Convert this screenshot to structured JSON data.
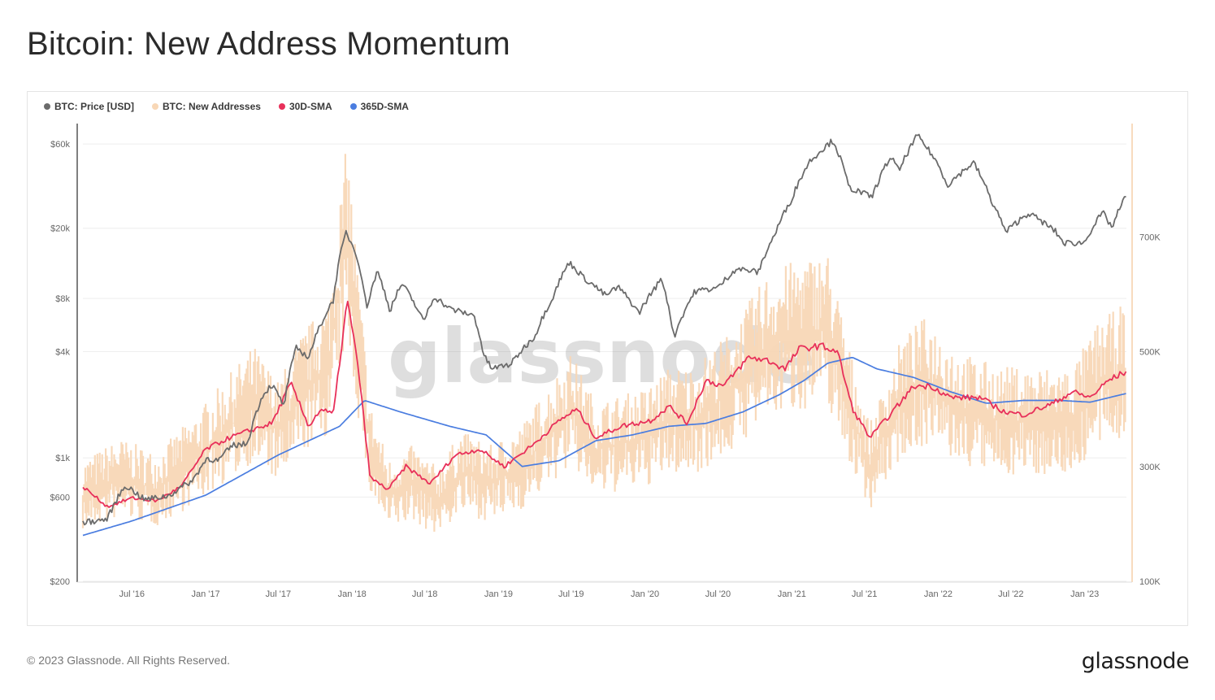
{
  "title": "Bitcoin: New Address Momentum",
  "footer": "© 2023 Glassnode. All Rights Reserved.",
  "brand": "glassnode",
  "watermark": "glassnode",
  "chart_data": {
    "type": "line",
    "title": "Bitcoin: New Address Momentum",
    "legend_position": "top-left",
    "grid": true,
    "x_range": [
      "2016-03-01",
      "2023-04-15"
    ],
    "x_ticks": [
      "Jul '16",
      "Jan '17",
      "Jul '17",
      "Jan '18",
      "Jul '18",
      "Jan '19",
      "Jul '19",
      "Jan '20",
      "Jul '20",
      "Jan '21",
      "Jul '21",
      "Jan '22",
      "Jul '22",
      "Jan '23"
    ],
    "y_left": {
      "scale": "log",
      "range": [
        200,
        80000
      ],
      "ticks": [
        {
          "value": 200,
          "label": "$200"
        },
        {
          "value": 600,
          "label": "$600"
        },
        {
          "value": 1000,
          "label": "$1k"
        },
        {
          "value": 4000,
          "label": "$4k"
        },
        {
          "value": 8000,
          "label": "$8k"
        },
        {
          "value": 20000,
          "label": "$20k"
        },
        {
          "value": 60000,
          "label": "$60k"
        }
      ]
    },
    "y_right": {
      "scale": "linear",
      "range": [
        100000,
        900000
      ],
      "ticks": [
        {
          "value": 100000,
          "label": "100K"
        },
        {
          "value": 300000,
          "label": "300K"
        },
        {
          "value": 500000,
          "label": "500K"
        },
        {
          "value": 700000,
          "label": "700K"
        }
      ]
    },
    "series": [
      {
        "name": "BTC: Price [USD]",
        "color": "#6b6b6b",
        "axis": "left",
        "points": [
          [
            "2016-03-01",
            430
          ],
          [
            "2016-05-01",
            450
          ],
          [
            "2016-06-15",
            700
          ],
          [
            "2016-08-01",
            580
          ],
          [
            "2016-10-01",
            610
          ],
          [
            "2016-12-01",
            750
          ],
          [
            "2017-01-05",
            1000
          ],
          [
            "2017-02-01",
            960
          ],
          [
            "2017-03-10",
            1180
          ],
          [
            "2017-04-15",
            1200
          ],
          [
            "2017-05-25",
            2300
          ],
          [
            "2017-06-15",
            2600
          ],
          [
            "2017-07-15",
            1950
          ],
          [
            "2017-08-15",
            4200
          ],
          [
            "2017-09-15",
            3700
          ],
          [
            "2017-10-15",
            5700
          ],
          [
            "2017-11-15",
            7800
          ],
          [
            "2017-12-17",
            19000
          ],
          [
            "2018-01-15",
            13500
          ],
          [
            "2018-02-06",
            7000
          ],
          [
            "2018-03-05",
            11400
          ],
          [
            "2018-04-05",
            6800
          ],
          [
            "2018-05-05",
            9700
          ],
          [
            "2018-06-28",
            5900
          ],
          [
            "2018-07-25",
            8200
          ],
          [
            "2018-09-01",
            7000
          ],
          [
            "2018-11-01",
            6400
          ],
          [
            "2018-11-25",
            3800
          ],
          [
            "2018-12-15",
            3200
          ],
          [
            "2019-02-01",
            3400
          ],
          [
            "2019-04-02",
            4900
          ],
          [
            "2019-05-15",
            8000
          ],
          [
            "2019-06-26",
            12800
          ],
          [
            "2019-08-01",
            10500
          ],
          [
            "2019-09-25",
            8300
          ],
          [
            "2019-10-26",
            9300
          ],
          [
            "2019-12-17",
            6600
          ],
          [
            "2020-02-12",
            10300
          ],
          [
            "2020-03-13",
            4800
          ],
          [
            "2020-05-05",
            8800
          ],
          [
            "2020-07-01",
            9200
          ],
          [
            "2020-08-15",
            11800
          ],
          [
            "2020-10-10",
            11300
          ],
          [
            "2020-11-20",
            18500
          ],
          [
            "2020-12-31",
            29000
          ],
          [
            "2021-02-15",
            48000
          ],
          [
            "2021-04-14",
            63000
          ],
          [
            "2021-05-23",
            34000
          ],
          [
            "2021-07-20",
            30000
          ],
          [
            "2021-09-05",
            51000
          ],
          [
            "2021-09-25",
            42000
          ],
          [
            "2021-11-10",
            67000
          ],
          [
            "2021-12-31",
            46000
          ],
          [
            "2022-01-24",
            35000
          ],
          [
            "2022-03-30",
            47000
          ],
          [
            "2022-05-12",
            29000
          ],
          [
            "2022-06-18",
            19000
          ],
          [
            "2022-08-14",
            24400
          ],
          [
            "2022-10-20",
            19200
          ],
          [
            "2022-11-09",
            16500
          ],
          [
            "2022-12-30",
            16500
          ],
          [
            "2023-02-15",
            24500
          ],
          [
            "2023-03-10",
            20100
          ],
          [
            "2023-04-14",
            30500
          ]
        ]
      },
      {
        "name": "BTC: New Addresses",
        "color": "#f8d7b6",
        "axis": "right",
        "points": [
          [
            "2016-03-01",
            250000
          ],
          [
            "2016-06-01",
            280000
          ],
          [
            "2016-09-01",
            260000
          ],
          [
            "2016-12-01",
            310000
          ],
          [
            "2017-02-01",
            350000
          ],
          [
            "2017-05-01",
            410000
          ],
          [
            "2017-07-01",
            360000
          ],
          [
            "2017-09-01",
            430000
          ],
          [
            "2017-11-01",
            470000
          ],
          [
            "2017-12-20",
            700000
          ],
          [
            "2018-01-10",
            550000
          ],
          [
            "2018-02-15",
            330000
          ],
          [
            "2018-04-01",
            250000
          ],
          [
            "2018-06-01",
            270000
          ],
          [
            "2018-08-01",
            240000
          ],
          [
            "2018-10-01",
            290000
          ],
          [
            "2018-12-15",
            270000
          ],
          [
            "2019-03-01",
            300000
          ],
          [
            "2019-05-01",
            350000
          ],
          [
            "2019-07-01",
            400000
          ],
          [
            "2019-09-01",
            330000
          ],
          [
            "2019-11-01",
            340000
          ],
          [
            "2020-01-01",
            350000
          ],
          [
            "2020-03-01",
            380000
          ],
          [
            "2020-05-01",
            380000
          ],
          [
            "2020-08-01",
            430000
          ],
          [
            "2020-11-01",
            510000
          ],
          [
            "2021-01-15",
            530000
          ],
          [
            "2021-04-01",
            540000
          ],
          [
            "2021-06-01",
            390000
          ],
          [
            "2021-07-15",
            300000
          ],
          [
            "2021-10-01",
            420000
          ],
          [
            "2021-12-01",
            450000
          ],
          [
            "2022-03-01",
            400000
          ],
          [
            "2022-06-01",
            380000
          ],
          [
            "2022-09-01",
            380000
          ],
          [
            "2022-12-01",
            380000
          ],
          [
            "2023-02-01",
            440000
          ],
          [
            "2023-04-14",
            470000
          ]
        ]
      },
      {
        "name": "30D-SMA",
        "color": "#e8305a",
        "axis": "right",
        "points": [
          [
            "2016-03-01",
            265000
          ],
          [
            "2016-05-01",
            230000
          ],
          [
            "2016-07-01",
            245000
          ],
          [
            "2016-09-01",
            240000
          ],
          [
            "2016-11-01",
            265000
          ],
          [
            "2017-01-01",
            330000
          ],
          [
            "2017-03-01",
            350000
          ],
          [
            "2017-05-01",
            365000
          ],
          [
            "2017-06-15",
            375000
          ],
          [
            "2017-08-01",
            445000
          ],
          [
            "2017-09-15",
            370000
          ],
          [
            "2017-10-15",
            400000
          ],
          [
            "2017-11-15",
            390000
          ],
          [
            "2017-12-20",
            590000
          ],
          [
            "2018-01-15",
            480000
          ],
          [
            "2018-02-15",
            280000
          ],
          [
            "2018-04-01",
            260000
          ],
          [
            "2018-05-15",
            300000
          ],
          [
            "2018-07-15",
            270000
          ],
          [
            "2018-09-15",
            320000
          ],
          [
            "2018-11-15",
            330000
          ],
          [
            "2019-01-15",
            300000
          ],
          [
            "2019-04-01",
            340000
          ],
          [
            "2019-06-01",
            380000
          ],
          [
            "2019-07-15",
            400000
          ],
          [
            "2019-09-01",
            350000
          ],
          [
            "2019-11-01",
            370000
          ],
          [
            "2020-01-15",
            380000
          ],
          [
            "2020-03-01",
            405000
          ],
          [
            "2020-04-15",
            375000
          ],
          [
            "2020-06-01",
            450000
          ],
          [
            "2020-07-15",
            440000
          ],
          [
            "2020-09-15",
            490000
          ],
          [
            "2020-11-01",
            485000
          ],
          [
            "2020-12-15",
            470000
          ],
          [
            "2021-01-20",
            505000
          ],
          [
            "2021-03-15",
            510000
          ],
          [
            "2021-04-25",
            500000
          ],
          [
            "2021-06-01",
            400000
          ],
          [
            "2021-07-15",
            350000
          ],
          [
            "2021-09-15",
            400000
          ],
          [
            "2021-11-01",
            440000
          ],
          [
            "2021-12-15",
            440000
          ],
          [
            "2022-02-01",
            420000
          ],
          [
            "2022-04-15",
            420000
          ],
          [
            "2022-06-15",
            395000
          ],
          [
            "2022-08-01",
            390000
          ],
          [
            "2022-10-15",
            410000
          ],
          [
            "2022-12-01",
            430000
          ],
          [
            "2023-01-15",
            420000
          ],
          [
            "2023-03-01",
            450000
          ],
          [
            "2023-04-14",
            465000
          ]
        ]
      },
      {
        "name": "365D-SMA",
        "color": "#4a7de0",
        "axis": "right",
        "points": [
          [
            "2016-03-01",
            180000
          ],
          [
            "2016-07-01",
            205000
          ],
          [
            "2017-01-01",
            250000
          ],
          [
            "2017-07-01",
            320000
          ],
          [
            "2017-12-01",
            370000
          ],
          [
            "2018-02-01",
            415000
          ],
          [
            "2018-05-01",
            395000
          ],
          [
            "2018-09-01",
            370000
          ],
          [
            "2018-12-01",
            355000
          ],
          [
            "2019-03-01",
            300000
          ],
          [
            "2019-06-01",
            310000
          ],
          [
            "2019-09-01",
            345000
          ],
          [
            "2019-12-01",
            355000
          ],
          [
            "2020-03-01",
            370000
          ],
          [
            "2020-06-01",
            375000
          ],
          [
            "2020-09-01",
            395000
          ],
          [
            "2020-12-01",
            425000
          ],
          [
            "2021-02-01",
            450000
          ],
          [
            "2021-04-01",
            480000
          ],
          [
            "2021-06-01",
            490000
          ],
          [
            "2021-08-01",
            470000
          ],
          [
            "2021-11-01",
            455000
          ],
          [
            "2022-02-01",
            430000
          ],
          [
            "2022-05-01",
            410000
          ],
          [
            "2022-08-01",
            415000
          ],
          [
            "2022-11-01",
            415000
          ],
          [
            "2023-01-15",
            412000
          ],
          [
            "2023-04-14",
            427000
          ]
        ]
      }
    ]
  }
}
